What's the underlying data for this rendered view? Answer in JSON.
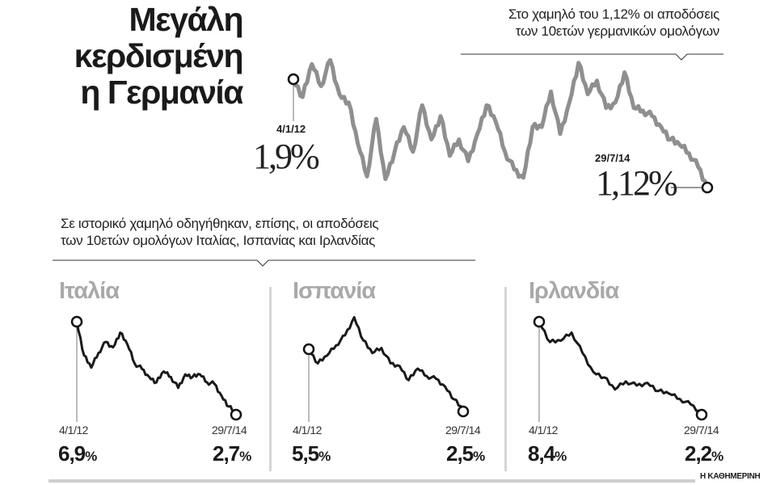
{
  "title": [
    "Μεγάλη",
    "κερδισμένη",
    "η Γερμανία"
  ],
  "germany_note": [
    "Στο χαμηλό του 1,12% οι αποδόσεις",
    "των 10ετών γερμανικών ομολόγων"
  ],
  "others_note": [
    "Σε ιστορικό χαμηλό οδηγήθηκαν, επίσης, οι αποδόσεις",
    "των 10ετών ομολόγων Ιταλίας, Ισπανίας και Ιρλανδίας"
  ],
  "credit": "Η ΚΑΘΗΜΕΡΙΝΗ",
  "chart_data": [
    {
      "type": "line",
      "name": "Germany",
      "start_label": "4/1/12",
      "start_value_label": "1,9%",
      "end_label": "29/7/14",
      "end_value_label": "1,12%",
      "color": "#8f8f8f",
      "values": [
        1.9,
        1.77,
        2.01,
        1.85,
        2.04,
        1.79,
        1.73,
        1.43,
        1.19,
        1.61,
        1.17,
        1.37,
        1.55,
        1.37,
        1.71,
        1.46,
        1.63,
        1.34,
        1.46,
        1.3,
        1.5,
        1.71,
        1.59,
        1.37,
        1.24,
        1.18,
        1.55,
        1.55,
        1.81,
        1.5,
        1.73,
        2.02,
        1.79,
        1.89,
        1.69,
        1.73,
        1.95,
        1.69,
        1.67,
        1.63,
        1.55,
        1.46,
        1.42,
        1.36,
        1.26,
        1.12
      ]
    },
    {
      "type": "line",
      "title": "Ιταλία",
      "start_label": "4/1/12",
      "start_value": "6,9",
      "end_label": "29/7/14",
      "end_value": "2,7",
      "unit": "%",
      "color": "#1a1a1a",
      "values": [
        6.9,
        5.35,
        4.79,
        5.47,
        5.97,
        5.72,
        6.4,
        5.85,
        4.98,
        4.73,
        4.36,
        4.11,
        4.61,
        4.36,
        3.86,
        4.48,
        4.36,
        4.48,
        4.11,
        4.05,
        3.49,
        3.0,
        2.7
      ]
    },
    {
      "type": "line",
      "title": "Ισπανία",
      "start_label": "4/1/12",
      "start_value": "5,5",
      "end_label": "29/7/14",
      "end_value": "2,5",
      "unit": "%",
      "color": "#1a1a1a",
      "values": [
        5.5,
        4.8,
        5.18,
        5.69,
        6.19,
        7.08,
        5.94,
        5.31,
        5.56,
        4.8,
        4.67,
        3.97,
        4.54,
        4.16,
        4.04,
        3.66,
        3.02,
        2.5
      ]
    },
    {
      "type": "line",
      "title": "Ιρλανδία",
      "start_label": "4/1/12",
      "start_value": "8,4",
      "end_label": "29/7/14",
      "end_value": "2,2",
      "unit": "%",
      "color": "#1a1a1a",
      "values": [
        8.4,
        7.02,
        7.11,
        7.66,
        6.28,
        4.99,
        4.62,
        3.8,
        4.35,
        4.07,
        4.25,
        3.7,
        3.52,
        3.15,
        2.78,
        2.2
      ]
    }
  ]
}
